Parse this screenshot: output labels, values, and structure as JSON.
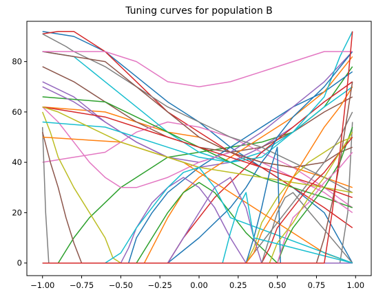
{
  "chart_data": {
    "type": "line",
    "title": "Tuning curves for population B",
    "xlabel": "",
    "ylabel": "",
    "xlim": [
      -1.1,
      1.1
    ],
    "ylim": [
      -5,
      96
    ],
    "xticks": [
      -1.0,
      -0.75,
      -0.5,
      -0.25,
      0.0,
      0.25,
      0.5,
      0.75,
      1.0
    ],
    "xtick_labels": [
      "−1.00",
      "−0.75",
      "−0.50",
      "−0.25",
      "0.00",
      "0.25",
      "0.50",
      "0.75",
      "1.00"
    ],
    "yticks": [
      0,
      20,
      40,
      60,
      80
    ],
    "ytick_labels": [
      "0",
      "20",
      "40",
      "60",
      "80"
    ],
    "grid": false,
    "legend": "none",
    "series": [
      {
        "color": "#1f77b4",
        "x": [
          -1.0,
          -0.8,
          -0.6,
          -0.4,
          -0.2,
          0.0,
          0.2,
          0.4,
          0.6,
          0.8,
          0.98
        ],
        "y": [
          92,
          90,
          84,
          74,
          64,
          56,
          46,
          38,
          30,
          20,
          0
        ]
      },
      {
        "color": "#ff7f0e",
        "x": [
          -1.0,
          -0.6,
          -0.4,
          -0.2,
          0.0,
          0.2,
          0.4,
          0.6,
          0.8,
          0.98
        ],
        "y": [
          62,
          60,
          56,
          52,
          50,
          44,
          40,
          38,
          34,
          30
        ]
      },
      {
        "color": "#2ca02c",
        "x": [
          -1.0,
          -0.9,
          -0.8,
          -0.7,
          -0.6,
          -0.5,
          -0.4,
          -0.3,
          -0.2,
          0.0,
          0.2,
          0.4,
          0.6,
          0.8,
          0.98
        ],
        "y": [
          0,
          0,
          10,
          18,
          24,
          30,
          34,
          38,
          42,
          44,
          46,
          48,
          52,
          62,
          78
        ]
      },
      {
        "color": "#d62728",
        "x": [
          -1.0,
          -0.9,
          -0.8,
          -0.6,
          -0.4,
          -0.2,
          0.0,
          0.2,
          0.4,
          0.6,
          0.8,
          0.98
        ],
        "y": [
          91,
          92,
          92,
          84,
          72,
          60,
          52,
          44,
          38,
          30,
          22,
          14
        ]
      },
      {
        "color": "#9467bd",
        "x": [
          -1.0,
          -0.8,
          -0.6,
          -0.4,
          -0.2,
          0.0,
          0.2,
          0.4,
          0.6,
          0.8,
          0.98
        ],
        "y": [
          72,
          66,
          56,
          48,
          42,
          38,
          40,
          46,
          54,
          64,
          72
        ]
      },
      {
        "color": "#8c564b",
        "x": [
          -1.0,
          -0.8,
          -0.6,
          -0.4,
          -0.2,
          0.0,
          0.2,
          0.4,
          0.6,
          0.8,
          0.98
        ],
        "y": [
          78,
          72,
          64,
          56,
          50,
          46,
          44,
          46,
          52,
          60,
          66
        ]
      },
      {
        "color": "#e377c2",
        "x": [
          -1.0,
          -0.8,
          -0.6,
          -0.5,
          -0.4,
          -0.2,
          0.0,
          0.2,
          0.4,
          0.6,
          0.8,
          0.98
        ],
        "y": [
          40,
          42,
          44,
          48,
          52,
          56,
          54,
          50,
          44,
          38,
          30,
          22
        ]
      },
      {
        "color": "#7f7f7f",
        "x": [
          -1.0,
          -0.98,
          -0.96,
          -0.9,
          -0.8,
          -0.5,
          0.0,
          0.5,
          0.8,
          0.9,
          0.95,
          0.98
        ],
        "y": [
          54,
          20,
          0,
          0,
          0,
          0,
          0,
          0,
          0,
          0,
          20,
          56
        ]
      },
      {
        "color": "#bcbd22",
        "x": [
          -1.0,
          -0.95,
          -0.9,
          -0.8,
          -0.7,
          -0.6,
          -0.55,
          -0.5,
          0.0,
          0.5,
          0.98
        ],
        "y": [
          60,
          52,
          42,
          30,
          20,
          10,
          2,
          0,
          0,
          0,
          0
        ]
      },
      {
        "color": "#17becf",
        "x": [
          -1.0,
          -0.8,
          -0.6,
          -0.4,
          -0.2,
          0.0,
          0.2,
          0.4,
          0.6,
          0.8,
          0.98
        ],
        "y": [
          84,
          82,
          72,
          62,
          52,
          44,
          40,
          44,
          52,
          62,
          70
        ]
      },
      {
        "color": "#1f77b4",
        "x": [
          -1.0,
          -0.6,
          -0.45,
          -0.4,
          -0.3,
          -0.2,
          0.0,
          0.2,
          0.4,
          0.6,
          0.8,
          0.98
        ],
        "y": [
          0,
          0,
          0,
          10,
          20,
          28,
          38,
          46,
          54,
          62,
          68,
          76
        ]
      },
      {
        "color": "#ff7f0e",
        "x": [
          -1.0,
          -0.35,
          -0.3,
          -0.2,
          -0.1,
          0.0,
          0.2,
          0.4,
          0.6,
          0.8,
          0.98
        ],
        "y": [
          0,
          0,
          6,
          18,
          28,
          34,
          42,
          50,
          58,
          68,
          82
        ]
      },
      {
        "color": "#2ca02c",
        "x": [
          -1.0,
          -0.6,
          -0.4,
          -0.2,
          0.0,
          0.2,
          0.4,
          0.6,
          0.8,
          0.98
        ],
        "y": [
          66,
          64,
          58,
          52,
          46,
          40,
          34,
          30,
          26,
          22
        ]
      },
      {
        "color": "#d62728",
        "x": [
          -1.0,
          -0.2,
          -0.1,
          0.0,
          0.1,
          0.2,
          0.3,
          0.4,
          0.6,
          0.8,
          0.98
        ],
        "y": [
          0,
          0,
          10,
          18,
          26,
          32,
          38,
          44,
          54,
          64,
          72
        ]
      },
      {
        "color": "#9467bd",
        "x": [
          -1.0,
          -0.8,
          -0.6,
          -0.4,
          -0.2,
          0.0,
          0.2,
          0.4,
          0.6,
          0.8,
          0.98
        ],
        "y": [
          70,
          64,
          56,
          48,
          42,
          40,
          44,
          52,
          62,
          72,
          84
        ]
      },
      {
        "color": "#8c564b",
        "x": [
          -1.0,
          -0.95,
          -0.9,
          -0.85,
          -0.8,
          -0.75,
          -0.7,
          -0.6,
          0.0,
          0.6,
          0.7,
          0.75,
          0.98
        ],
        "y": [
          52,
          40,
          30,
          18,
          8,
          0,
          0,
          0,
          0,
          0,
          0,
          0,
          0
        ]
      },
      {
        "color": "#e377c2",
        "x": [
          -1.0,
          -0.9,
          -0.8,
          -0.7,
          -0.6,
          -0.5,
          -0.4,
          -0.2,
          0.0,
          0.2,
          0.4,
          0.6,
          0.8,
          0.98
        ],
        "y": [
          62,
          56,
          48,
          40,
          34,
          30,
          30,
          34,
          40,
          44,
          40,
          34,
          28,
          20
        ]
      },
      {
        "color": "#7f7f7f",
        "x": [
          -1.0,
          -0.85,
          -0.8,
          -0.6,
          -0.4,
          -0.2,
          0.0,
          0.2,
          0.4,
          0.6,
          0.8,
          0.98
        ],
        "y": [
          91,
          86,
          84,
          78,
          70,
          62,
          56,
          50,
          46,
          40,
          34,
          28
        ]
      },
      {
        "color": "#bcbd22",
        "x": [
          -1.0,
          0.0,
          0.2,
          0.3,
          0.35,
          0.4,
          0.5,
          0.6,
          0.7,
          0.8,
          0.9,
          0.98
        ],
        "y": [
          0,
          0,
          0,
          0,
          6,
          16,
          26,
          34,
          40,
          44,
          48,
          50
        ]
      },
      {
        "color": "#17becf",
        "x": [
          -1.0,
          -0.6,
          -0.4,
          -0.2,
          0.0,
          0.2,
          0.4,
          0.6,
          0.8,
          0.9,
          0.98
        ],
        "y": [
          56,
          54,
          50,
          46,
          42,
          40,
          42,
          52,
          66,
          82,
          92
        ]
      },
      {
        "color": "#1f77b4",
        "x": [
          -1.0,
          -0.2,
          0.0,
          0.2,
          0.3,
          0.4,
          0.45,
          0.5,
          0.6,
          0.8,
          0.98
        ],
        "y": [
          0,
          0,
          10,
          22,
          30,
          40,
          44,
          50,
          58,
          70,
          84
        ]
      },
      {
        "color": "#ff7f0e",
        "x": [
          -1.0,
          -0.5,
          -0.3,
          -0.1,
          0.0,
          0.1,
          0.2,
          0.3,
          0.4,
          0.5,
          0.6,
          0.8,
          0.98
        ],
        "y": [
          50,
          48,
          44,
          40,
          36,
          32,
          28,
          24,
          20,
          16,
          12,
          4,
          0
        ]
      },
      {
        "color": "#2ca02c",
        "x": [
          -1.0,
          -0.6,
          -0.4,
          -0.3,
          -0.2,
          -0.1,
          0.0,
          0.1,
          0.2,
          0.3,
          0.5,
          0.98
        ],
        "y": [
          0,
          0,
          0,
          10,
          20,
          28,
          32,
          28,
          20,
          12,
          0,
          0
        ]
      },
      {
        "color": "#d62728",
        "x": [
          -1.0,
          -0.8,
          -0.6,
          -0.4,
          -0.2,
          0.0,
          0.2,
          0.4,
          0.6,
          0.8,
          0.98
        ],
        "y": [
          62,
          60,
          58,
          54,
          50,
          46,
          42,
          38,
          34,
          30,
          26
        ]
      },
      {
        "color": "#9467bd",
        "x": [
          -1.0,
          -0.5,
          -0.45,
          -0.4,
          -0.3,
          -0.2,
          -0.1,
          0.0,
          0.1,
          0.2,
          0.3,
          0.98
        ],
        "y": [
          0,
          0,
          6,
          14,
          24,
          30,
          34,
          30,
          22,
          10,
          0,
          0
        ]
      },
      {
        "color": "#8c564b",
        "x": [
          -1.0,
          -0.6,
          -0.4,
          -0.2,
          0.0,
          0.2,
          0.4,
          0.6,
          0.8,
          0.9,
          0.98
        ],
        "y": [
          84,
          80,
          70,
          60,
          50,
          44,
          40,
          38,
          40,
          44,
          46
        ]
      },
      {
        "color": "#e377c2",
        "x": [
          -1.0,
          -0.8,
          -0.6,
          -0.4,
          -0.3,
          -0.2,
          0.0,
          0.2,
          0.4,
          0.6,
          0.8,
          0.98
        ],
        "y": [
          84,
          84,
          84,
          80,
          76,
          72,
          70,
          72,
          76,
          80,
          84,
          84
        ]
      },
      {
        "color": "#7f7f7f",
        "x": [
          -1.0,
          0.0,
          0.2,
          0.3,
          0.4,
          0.5,
          0.6,
          0.7,
          0.8,
          0.9,
          0.98
        ],
        "y": [
          0,
          0,
          0,
          0,
          8,
          16,
          24,
          32,
          40,
          50,
          60
        ]
      },
      {
        "color": "#bcbd22",
        "x": [
          -1.0,
          -0.9,
          -0.7,
          -0.5,
          -0.3,
          -0.1,
          0.0,
          0.2,
          0.4,
          0.6,
          0.8,
          0.98
        ],
        "y": [
          62,
          60,
          54,
          48,
          44,
          40,
          38,
          36,
          34,
          32,
          30,
          28
        ]
      },
      {
        "color": "#17becf",
        "x": [
          -1.0,
          -0.6,
          -0.5,
          -0.4,
          -0.3,
          -0.2,
          -0.1,
          0.0,
          0.1,
          0.2,
          0.98
        ],
        "y": [
          0,
          0,
          4,
          14,
          22,
          30,
          36,
          38,
          30,
          18,
          0
        ]
      },
      {
        "color": "#1f77b4",
        "x": [
          -1.0,
          0.3,
          0.35,
          0.4,
          0.45,
          0.5,
          0.52,
          0.98
        ],
        "y": [
          0,
          0,
          10,
          22,
          36,
          46,
          0,
          0
        ]
      },
      {
        "color": "#ff7f0e",
        "x": [
          -1.0,
          0.3,
          0.35,
          0.4,
          0.5,
          0.6,
          0.7,
          0.8,
          0.9,
          0.98
        ],
        "y": [
          0,
          0,
          4,
          12,
          22,
          34,
          44,
          54,
          62,
          70
        ]
      },
      {
        "color": "#2ca02c",
        "x": [
          -1.0,
          0.5,
          0.55,
          0.6,
          0.7,
          0.8,
          0.9,
          0.98
        ],
        "y": [
          0,
          0,
          8,
          14,
          22,
          30,
          40,
          54
        ]
      },
      {
        "color": "#d62728",
        "x": [
          -1.0,
          0.4,
          0.45,
          0.5,
          0.6,
          0.7,
          0.8,
          0.9,
          0.98
        ],
        "y": [
          0,
          0,
          6,
          14,
          22,
          30,
          36,
          44,
          50
        ]
      },
      {
        "color": "#9467bd",
        "x": [
          -1.0,
          -0.2,
          0.0,
          0.1,
          0.2,
          0.3,
          0.35,
          0.4,
          0.98
        ],
        "y": [
          0,
          0,
          20,
          30,
          34,
          22,
          10,
          0,
          0
        ]
      },
      {
        "color": "#8c564b",
        "x": [
          -1.0,
          0.7,
          0.75,
          0.8,
          0.85,
          0.9,
          0.95,
          0.98
        ],
        "y": [
          0,
          0,
          0,
          10,
          24,
          40,
          60,
          72
        ]
      },
      {
        "color": "#e377c2",
        "x": [
          -1.0,
          0.5,
          0.55,
          0.6,
          0.7,
          0.8,
          0.9,
          0.98
        ],
        "y": [
          0,
          0,
          10,
          18,
          24,
          32,
          38,
          44
        ]
      },
      {
        "color": "#7f7f7f",
        "x": [
          -1.0,
          0.4,
          0.45,
          0.5,
          0.55,
          0.6,
          0.98
        ],
        "y": [
          0,
          0,
          10,
          20,
          26,
          28,
          0
        ]
      },
      {
        "color": "#bcbd22",
        "x": [
          -1.0,
          0.45,
          0.5,
          0.6,
          0.7,
          0.8,
          0.9,
          0.98
        ],
        "y": [
          0,
          0,
          8,
          16,
          26,
          34,
          44,
          52
        ]
      },
      {
        "color": "#17becf",
        "x": [
          -1.0,
          0.15,
          0.2,
          0.25,
          0.3,
          0.35,
          0.98
        ],
        "y": [
          0,
          0,
          12,
          22,
          28,
          10,
          0
        ]
      },
      {
        "color": "#d62728",
        "x": [
          -1.0,
          0.8,
          0.85,
          0.9,
          0.95,
          0.98
        ],
        "y": [
          0,
          0,
          20,
          44,
          72,
          92
        ]
      }
    ]
  }
}
